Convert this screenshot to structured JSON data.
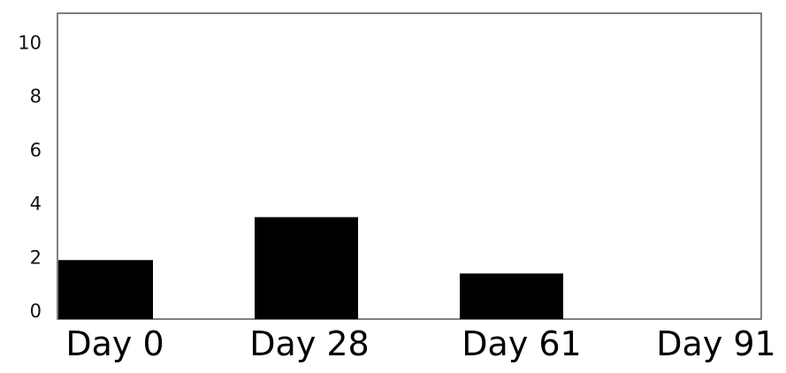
{
  "chart_data": {
    "type": "bar",
    "title": "",
    "xlabel": "",
    "ylabel": "",
    "categories": [
      "Day 0",
      "Day 28",
      "Day 61",
      "Day 91"
    ],
    "values": [
      2.2,
      3.8,
      1.7,
      0
    ],
    "ylim": [
      0,
      11.4
    ],
    "yticks": [
      0,
      2,
      4,
      6,
      8,
      10
    ],
    "ytick_labels": [
      "0",
      "2",
      "4",
      "6",
      "8",
      "10"
    ],
    "grid": false,
    "legend": "none",
    "bar_color": "#000000",
    "frame_color": "#555555"
  }
}
